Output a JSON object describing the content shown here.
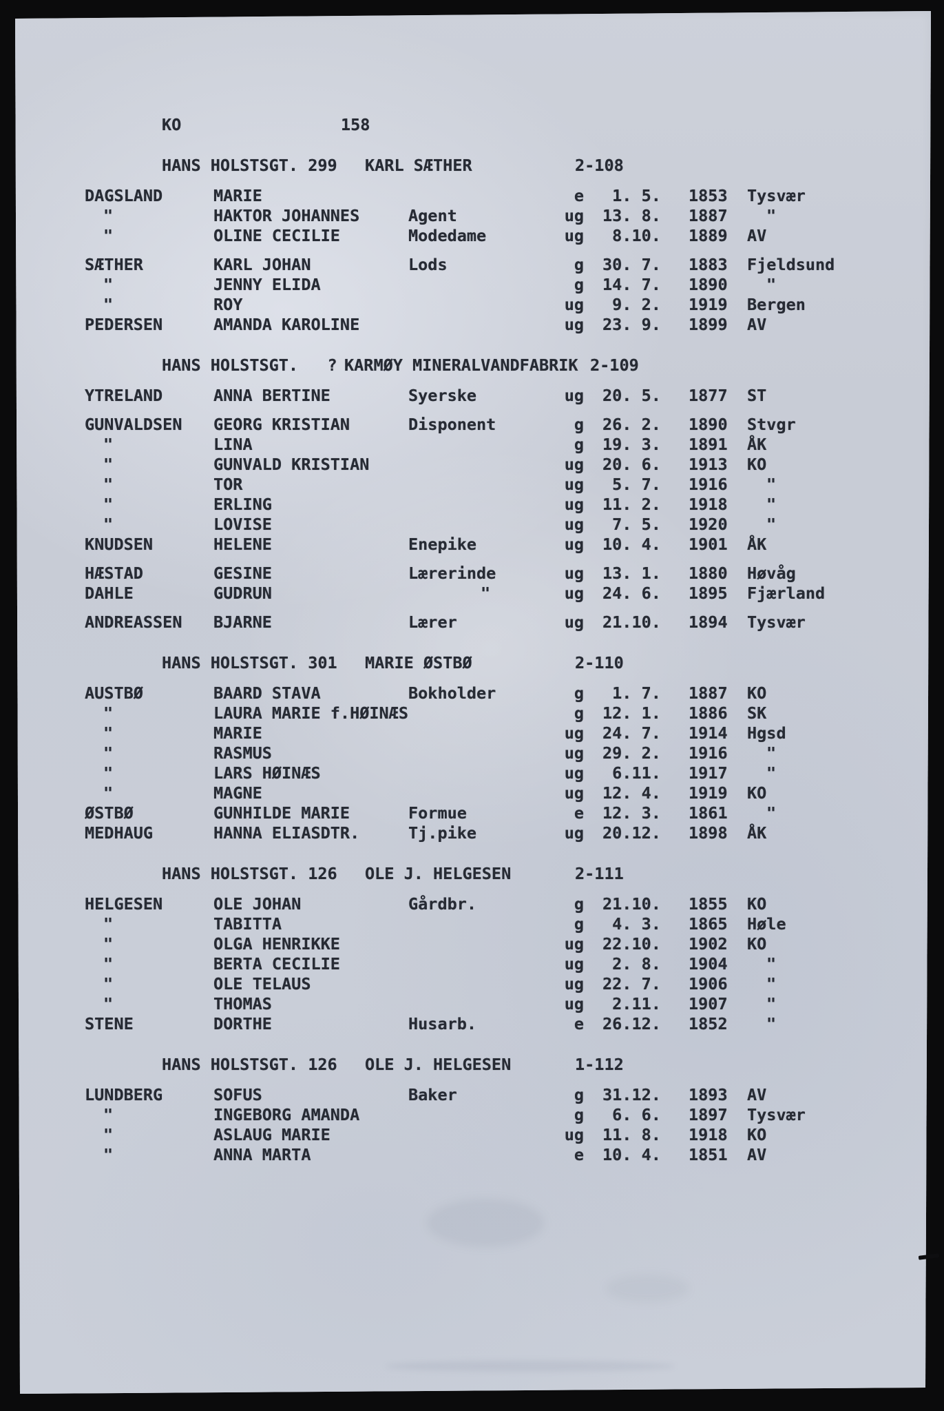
{
  "page": {
    "code": "KO",
    "number": "158",
    "background_color": "#0b0b0c",
    "paper_color": "#c8ccd6",
    "ink_color": "#272b34"
  },
  "households": [
    {
      "header": {
        "street": "HANS HOLSTSGT. 299",
        "name": "KARL SÆTHER",
        "id": "2-108"
      },
      "rows": [
        {
          "surname": "DAGSLAND",
          "given": "MARIE",
          "occupation": "",
          "status": "e",
          "date": " 1. 5.",
          "year": "1853",
          "place": "Tysvær"
        },
        {
          "surname": "\"",
          "given": "HAKTOR JOHANNES",
          "occupation": "Agent",
          "status": "ug",
          "date": "13. 8.",
          "year": "1887",
          "place": "\""
        },
        {
          "surname": "\"",
          "given": "OLINE CECILIE",
          "occupation": "Modedame",
          "status": "ug",
          "date": " 8.10.",
          "year": "1889",
          "place": "AV"
        },
        {
          "gap": true
        },
        {
          "surname": "SÆTHER",
          "given": "KARL JOHAN",
          "occupation": "Lods",
          "status": "g",
          "date": "30. 7.",
          "year": "1883",
          "place": "Fjeldsund"
        },
        {
          "surname": "\"",
          "given": "JENNY ELIDA",
          "occupation": "",
          "status": "g",
          "date": "14. 7.",
          "year": "1890",
          "place": "\""
        },
        {
          "surname": "\"",
          "given": "ROY",
          "occupation": "",
          "status": "ug",
          "date": " 9. 2.",
          "year": "1919",
          "place": "Bergen"
        },
        {
          "surname": "PEDERSEN",
          "given": "AMANDA KAROLINE",
          "occupation": "",
          "status": "ug",
          "date": "23. 9.",
          "year": "1899",
          "place": "AV"
        }
      ]
    },
    {
      "header": {
        "street": "HANS HOLSTSGT.   ?",
        "name": "KARMØY MINERALVANDFABRIK",
        "id": "2-109"
      },
      "rows": [
        {
          "surname": "YTRELAND",
          "given": "ANNA BERTINE",
          "occupation": "Syerske",
          "status": "ug",
          "date": "20. 5.",
          "year": "1877",
          "place": "ST"
        },
        {
          "gap": true
        },
        {
          "surname": "GUNVALDSEN",
          "given": "GEORG KRISTIAN",
          "occupation": "Disponent",
          "status": "g",
          "date": "26. 2.",
          "year": "1890",
          "place": "Stvgr"
        },
        {
          "surname": "\"",
          "given": "LINA",
          "occupation": "",
          "status": "g",
          "date": "19. 3.",
          "year": "1891",
          "place": "ÅK"
        },
        {
          "surname": "\"",
          "given": "GUNVALD KRISTIAN",
          "occupation": "",
          "status": "ug",
          "date": "20. 6.",
          "year": "1913",
          "place": "KO"
        },
        {
          "surname": "\"",
          "given": "TOR",
          "occupation": "",
          "status": "ug",
          "date": " 5. 7.",
          "year": "1916",
          "place": "\""
        },
        {
          "surname": "\"",
          "given": "ERLING",
          "occupation": "",
          "status": "ug",
          "date": "11. 2.",
          "year": "1918",
          "place": "\""
        },
        {
          "surname": "\"",
          "given": "LOVISE",
          "occupation": "",
          "status": "ug",
          "date": " 7. 5.",
          "year": "1920",
          "place": "\""
        },
        {
          "surname": "KNUDSEN",
          "given": "HELENE",
          "occupation": "Enepike",
          "status": "ug",
          "date": "10. 4.",
          "year": "1901",
          "place": "ÅK"
        },
        {
          "gap": true
        },
        {
          "surname": "HÆSTAD",
          "given": "GESINE",
          "occupation": "Lærerinde",
          "status": "ug",
          "date": "13. 1.",
          "year": "1880",
          "place": "Høvåg"
        },
        {
          "surname": "DAHLE",
          "given": "GUDRUN",
          "occupation": "\"",
          "status": "ug",
          "date": "24. 6.",
          "year": "1895",
          "place": "Fjærland"
        },
        {
          "gap": true
        },
        {
          "surname": "ANDREASSEN",
          "given": "BJARNE",
          "occupation": "Lærer",
          "status": "ug",
          "date": "21.10.",
          "year": "1894",
          "place": "Tysvær"
        }
      ]
    },
    {
      "header": {
        "street": "HANS HOLSTSGT. 301",
        "name": "MARIE ØSTBØ",
        "id": "2-110"
      },
      "rows": [
        {
          "surname": "AUSTBØ",
          "given": "BAARD STAVA",
          "occupation": "Bokholder",
          "status": "g",
          "date": " 1. 7.",
          "year": "1887",
          "place": "KO"
        },
        {
          "surname": "\"",
          "given": "LAURA MARIE f.HØINÆS",
          "occupation": "",
          "status": "g",
          "date": "12. 1.",
          "year": "1886",
          "place": "SK"
        },
        {
          "surname": "\"",
          "given": "MARIE",
          "occupation": "",
          "status": "ug",
          "date": "24. 7.",
          "year": "1914",
          "place": "Hgsd"
        },
        {
          "surname": "\"",
          "given": "RASMUS",
          "occupation": "",
          "status": "ug",
          "date": "29. 2.",
          "year": "1916",
          "place": "\""
        },
        {
          "surname": "\"",
          "given": "LARS HØINÆS",
          "occupation": "",
          "status": "ug",
          "date": " 6.11.",
          "year": "1917",
          "place": "\""
        },
        {
          "surname": "\"",
          "given": "MAGNE",
          "occupation": "",
          "status": "ug",
          "date": "12. 4.",
          "year": "1919",
          "place": "KO"
        },
        {
          "surname": "ØSTBØ",
          "given": "GUNHILDE MARIE",
          "occupation": "Formue",
          "status": "e",
          "date": "12. 3.",
          "year": "1861",
          "place": "\""
        },
        {
          "surname": "MEDHAUG",
          "given": "HANNA ELIASDTR.",
          "occupation": "Tj.pike",
          "status": "ug",
          "date": "20.12.",
          "year": "1898",
          "place": "ÅK"
        }
      ]
    },
    {
      "header": {
        "street": "HANS HOLSTSGT. 126",
        "name": "OLE J. HELGESEN",
        "id": "2-111"
      },
      "rows": [
        {
          "surname": "HELGESEN",
          "given": "OLE JOHAN",
          "occupation": "Gårdbr.",
          "status": "g",
          "date": "21.10.",
          "year": "1855",
          "place": "KO"
        },
        {
          "surname": "\"",
          "given": "TABITTA",
          "occupation": "",
          "status": "g",
          "date": " 4. 3.",
          "year": "1865",
          "place": "Høle"
        },
        {
          "surname": "\"",
          "given": "OLGA HENRIKKE",
          "occupation": "",
          "status": "ug",
          "date": "22.10.",
          "year": "1902",
          "place": "KO"
        },
        {
          "surname": "\"",
          "given": "BERTA CECILIE",
          "occupation": "",
          "status": "ug",
          "date": " 2. 8.",
          "year": "1904",
          "place": "\""
        },
        {
          "surname": "\"",
          "given": "OLE TELAUS",
          "occupation": "",
          "status": "ug",
          "date": "22. 7.",
          "year": "1906",
          "place": "\""
        },
        {
          "surname": "\"",
          "given": "THOMAS",
          "occupation": "",
          "status": "ug",
          "date": " 2.11.",
          "year": "1907",
          "place": "\""
        },
        {
          "surname": "STENE",
          "given": "DORTHE",
          "occupation": "Husarb.",
          "status": "e",
          "date": "26.12.",
          "year": "1852",
          "place": "\""
        }
      ]
    },
    {
      "header": {
        "street": "HANS HOLSTSGT. 126",
        "name": "OLE J. HELGESEN",
        "id": "1-112"
      },
      "rows": [
        {
          "surname": "LUNDBERG",
          "given": "SOFUS",
          "occupation": "Baker",
          "status": "g",
          "date": "31.12.",
          "year": "1893",
          "place": "AV"
        },
        {
          "surname": "\"",
          "given": "INGEBORG AMANDA",
          "occupation": "",
          "status": "g",
          "date": " 6. 6.",
          "year": "1897",
          "place": "Tysvær"
        },
        {
          "surname": "\"",
          "given": "ASLAUG MARIE",
          "occupation": "",
          "status": "ug",
          "date": "11. 8.",
          "year": "1918",
          "place": "KO"
        },
        {
          "surname": "\"",
          "given": "ANNA MARTA",
          "occupation": "",
          "status": "e",
          "date": "10. 4.",
          "year": "1851",
          "place": "AV"
        }
      ]
    }
  ]
}
